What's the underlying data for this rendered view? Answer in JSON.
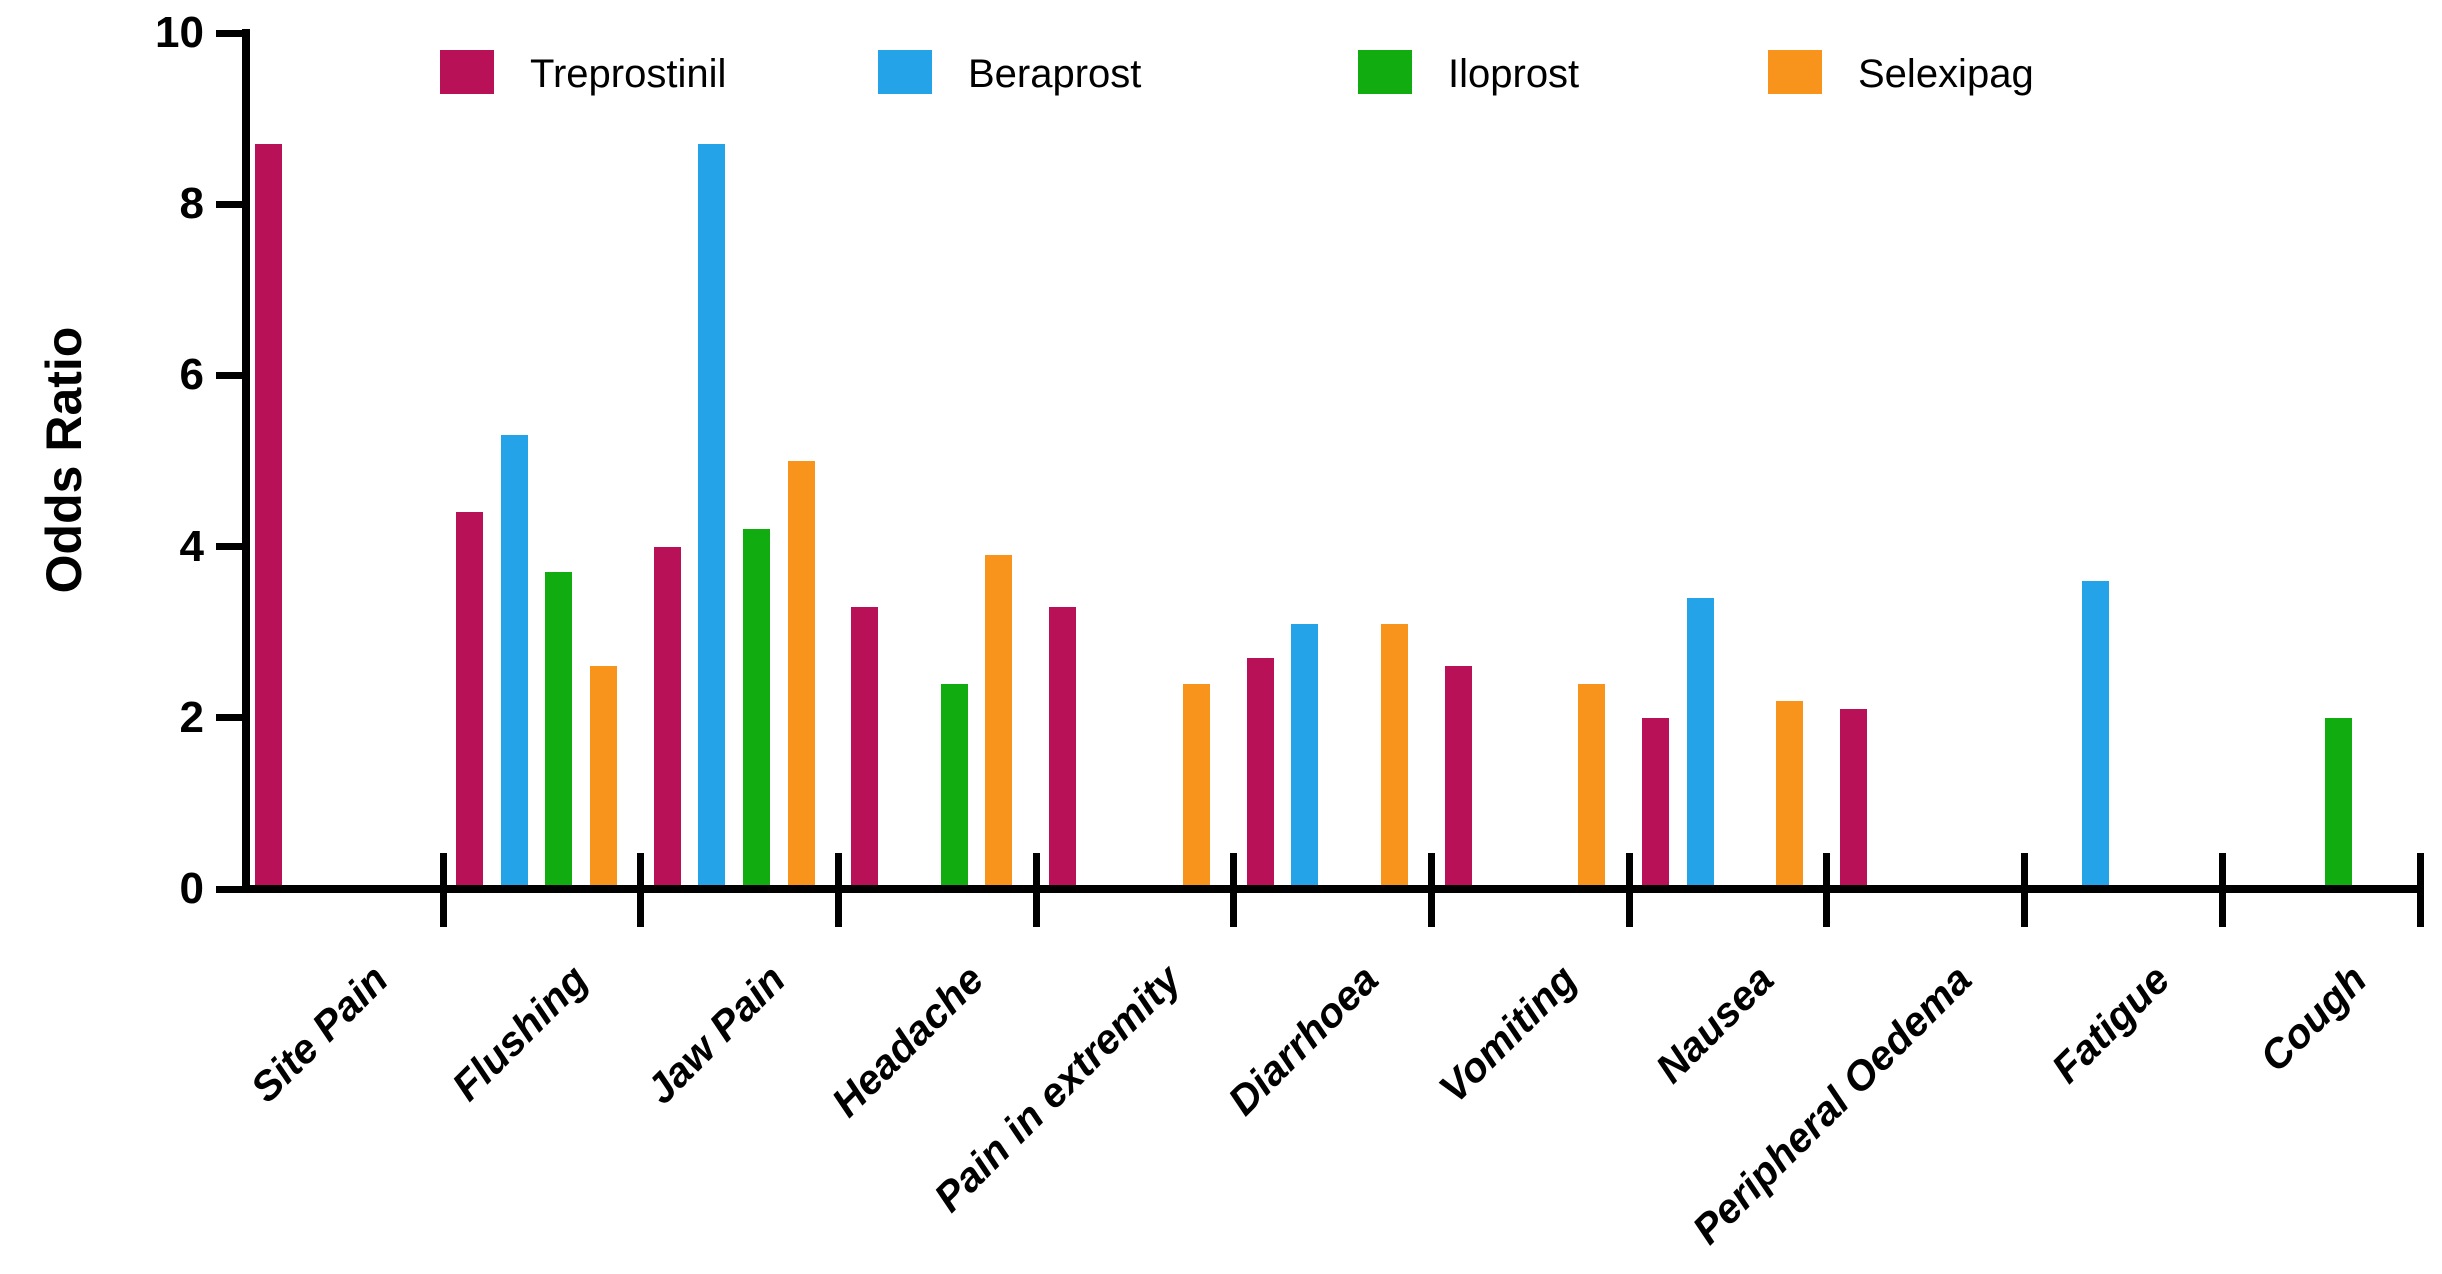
{
  "chart_data": {
    "type": "bar",
    "title": "",
    "xlabel": "",
    "ylabel": "Odds Ratio",
    "ylim": [
      0,
      10
    ],
    "yticks": [
      0,
      2,
      4,
      6,
      8,
      10
    ],
    "grid": false,
    "legend_position": "top",
    "categories": [
      "Site Pain",
      "Flushing",
      "Jaw Pain",
      "Headache",
      "Pain in extremity",
      "Diarrhoea",
      "Vomiting",
      "Nausea",
      "Peripheral Oedema",
      "Fatigue",
      "Cough"
    ],
    "series": [
      {
        "name": "Treprostinil",
        "color": "#B81157",
        "values": [
          8.7,
          4.4,
          4.0,
          3.3,
          3.3,
          2.7,
          2.6,
          2.0,
          2.1,
          null,
          null
        ]
      },
      {
        "name": "Beraprost",
        "color": "#25A3E8",
        "values": [
          null,
          5.3,
          8.7,
          null,
          null,
          3.1,
          null,
          3.4,
          null,
          3.6,
          null
        ]
      },
      {
        "name": "Iloprost",
        "color": "#10AC10",
        "values": [
          null,
          3.7,
          4.2,
          2.4,
          null,
          null,
          null,
          null,
          null,
          null,
          2.0
        ]
      },
      {
        "name": "Selexipag",
        "color": "#F8941C",
        "values": [
          null,
          2.6,
          5.0,
          3.9,
          2.4,
          3.1,
          2.4,
          2.2,
          null,
          null,
          null
        ]
      }
    ]
  }
}
